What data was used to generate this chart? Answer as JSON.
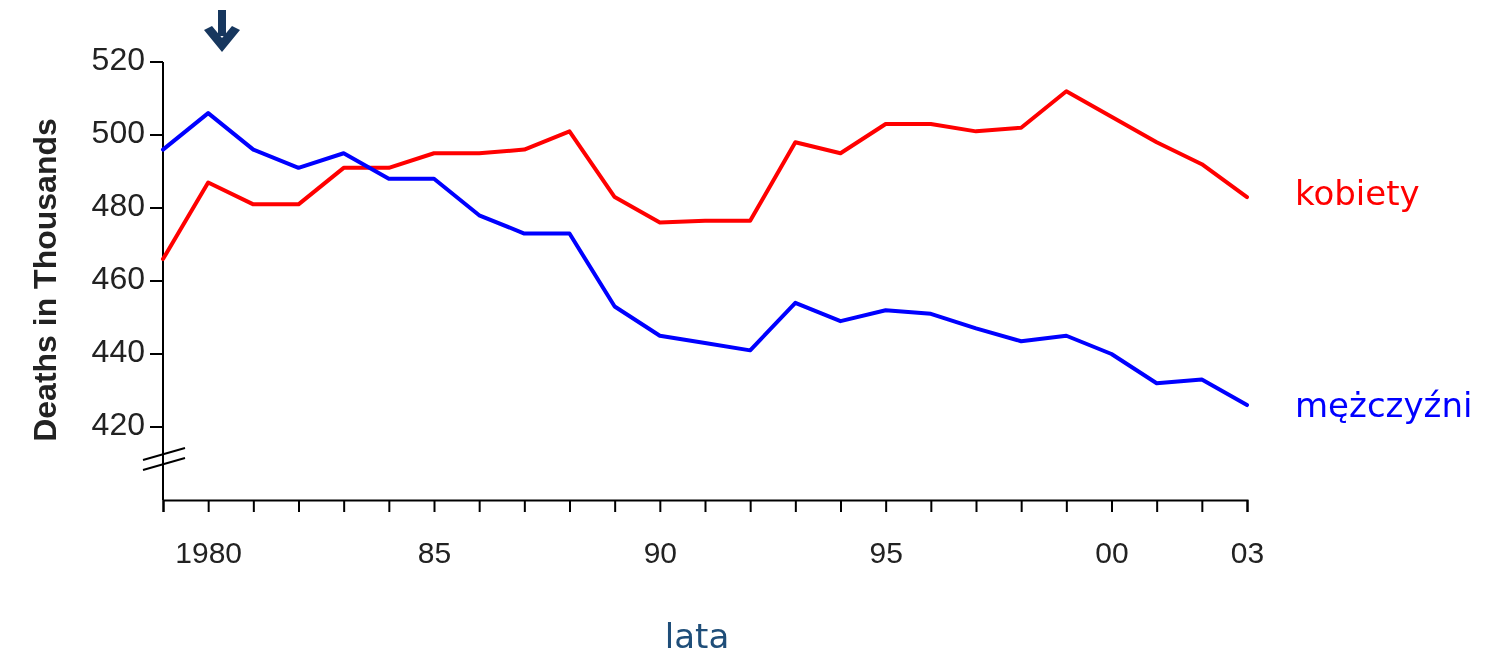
{
  "chart_data": {
    "type": "line",
    "ylabel": "Deaths in Thousands",
    "xlabel": "lata",
    "xlim": [
      1979,
      2003
    ],
    "ylim": [
      400,
      520
    ],
    "yticks": [
      420,
      440,
      460,
      480,
      500,
      520
    ],
    "xticks": [
      {
        "value": 1979,
        "label": null
      },
      {
        "value": 1980,
        "label": "1980"
      },
      {
        "value": 1981,
        "label": null
      },
      {
        "value": 1982,
        "label": null
      },
      {
        "value": 1983,
        "label": null
      },
      {
        "value": 1984,
        "label": null
      },
      {
        "value": 1985,
        "label": "85"
      },
      {
        "value": 1986,
        "label": null
      },
      {
        "value": 1987,
        "label": null
      },
      {
        "value": 1988,
        "label": null
      },
      {
        "value": 1989,
        "label": null
      },
      {
        "value": 1990,
        "label": "90"
      },
      {
        "value": 1991,
        "label": null
      },
      {
        "value": 1992,
        "label": null
      },
      {
        "value": 1993,
        "label": null
      },
      {
        "value": 1994,
        "label": null
      },
      {
        "value": 1995,
        "label": "95"
      },
      {
        "value": 1996,
        "label": null
      },
      {
        "value": 1997,
        "label": null
      },
      {
        "value": 1998,
        "label": null
      },
      {
        "value": 1999,
        "label": null
      },
      {
        "value": 2000,
        "label": "00"
      },
      {
        "value": 2001,
        "label": null
      },
      {
        "value": 2002,
        "label": null
      },
      {
        "value": 2003,
        "label": "03"
      }
    ],
    "x": [
      1979,
      1980,
      1981,
      1982,
      1983,
      1984,
      1985,
      1986,
      1987,
      1988,
      1989,
      1990,
      1991,
      1992,
      1993,
      1994,
      1995,
      1996,
      1997,
      1998,
      1999,
      2000,
      2001,
      2002,
      2003
    ],
    "series": [
      {
        "name": "kobiety",
        "color": "#ff0000",
        "values": [
          466,
          487,
          481,
          481,
          491,
          491,
          495,
          495,
          496,
          501,
          483,
          476,
          476.5,
          476.5,
          498,
          495,
          503,
          503,
          501,
          502,
          512,
          505,
          498,
          492,
          483
        ]
      },
      {
        "name": "mężczyźni",
        "color": "#0000ff",
        "values": [
          496,
          506,
          496,
          491,
          495,
          488,
          488,
          478,
          473,
          473,
          453,
          445,
          443,
          441,
          454,
          449,
          452,
          451,
          447,
          443.5,
          445,
          440,
          432,
          433,
          426
        ]
      }
    ],
    "grid": false,
    "legend": false,
    "marker": "none",
    "line_style": "solid"
  }
}
